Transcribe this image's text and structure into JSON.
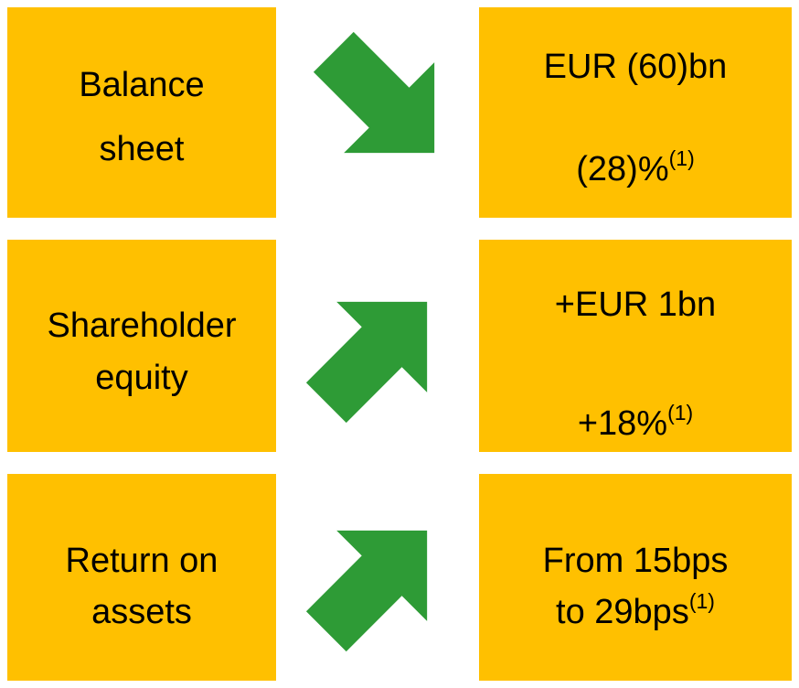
{
  "rows": [
    {
      "label": [
        "Balance",
        "sheet"
      ],
      "value": [
        {
          "text": "EUR (60)bn"
        },
        {
          "text": "(28)%",
          "note": "(1)"
        }
      ]
    },
    {
      "label": [
        "Shareholder",
        "equity"
      ],
      "value": [
        {
          "text": "+EUR 1bn"
        },
        {
          "text": "+18%",
          "note": "(1)"
        }
      ]
    },
    {
      "label": [
        "Return on",
        "assets"
      ],
      "value": [
        {
          "text": "From 15bps"
        },
        {
          "text": "to 29bps",
          "note": "(1)"
        }
      ]
    }
  ]
}
